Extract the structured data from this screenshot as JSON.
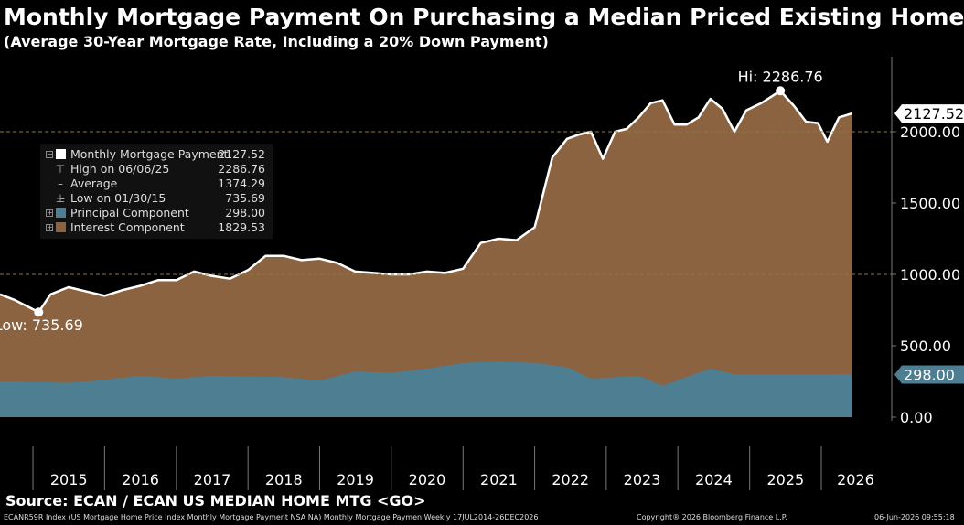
{
  "chart_data": {
    "type": "area",
    "title": "Monthly Mortgage Payment On Purchasing a Median Priced Existing Home",
    "subtitle": "(Average 30-Year Mortgage Rate, Including a 20% Down Payment)",
    "x_ticks": [
      "2015",
      "2016",
      "2017",
      "2018",
      "2019",
      "2020",
      "2021",
      "2022",
      "2023",
      "2024",
      "2025",
      "2026"
    ],
    "y_ticks": [
      "0.00",
      "500.00",
      "1000.00",
      "1500.00",
      "2000.00"
    ],
    "ylim": [
      0,
      2500
    ],
    "xlim": [
      "2014-07-17",
      "2026-12-26"
    ],
    "grid": "dashed horizontal lines at 1000 and 2000",
    "legend_position": "top-left",
    "series": [
      {
        "name": "Monthly Mortgage Payment",
        "color": "#ffffff",
        "x": [
          "2014-07-17",
          "2014-10-01",
          "2015-01-30",
          "2015-04-01",
          "2015-07-01",
          "2015-10-01",
          "2016-01-01",
          "2016-04-01",
          "2016-07-01",
          "2016-10-01",
          "2017-01-01",
          "2017-04-01",
          "2017-07-01",
          "2017-10-01",
          "2018-01-01",
          "2018-04-01",
          "2018-07-01",
          "2018-10-01",
          "2019-01-01",
          "2019-04-01",
          "2019-07-01",
          "2019-10-01",
          "2020-01-01",
          "2020-04-01",
          "2020-07-01",
          "2020-10-01",
          "2021-01-01",
          "2021-04-01",
          "2021-07-01",
          "2021-10-01",
          "2022-01-01",
          "2022-04-01",
          "2022-06-15",
          "2022-08-15",
          "2022-10-15",
          "2022-12-15",
          "2023-02-15",
          "2023-04-15",
          "2023-06-15",
          "2023-08-15",
          "2023-10-15",
          "2023-12-15",
          "2024-02-15",
          "2024-04-15",
          "2024-06-15",
          "2024-08-15",
          "2024-10-15",
          "2024-12-15",
          "2025-03-01",
          "2025-06-06",
          "2025-08-15",
          "2025-10-15",
          "2025-12-15",
          "2026-02-01",
          "2026-04-01",
          "2026-06-06"
        ],
        "values": [
          860,
          820,
          735.69,
          860,
          910,
          880,
          850,
          890,
          920,
          960,
          960,
          1020,
          990,
          970,
          1030,
          1130,
          1130,
          1100,
          1110,
          1080,
          1020,
          1010,
          1000,
          1000,
          1020,
          1010,
          1040,
          1220,
          1250,
          1240,
          1330,
          1820,
          1950,
          1980,
          2000,
          1810,
          2000,
          2020,
          2100,
          2200,
          2220,
          2050,
          2050,
          2100,
          2230,
          2160,
          2000,
          2150,
          2200,
          2286.76,
          2180,
          2070,
          2060,
          1930,
          2100,
          2127.52
        ]
      },
      {
        "name": "Principal Component",
        "color": "#4e7e92",
        "x": [
          "2014-07-17",
          "2015-01-30",
          "2015-07-01",
          "2016-01-01",
          "2016-07-01",
          "2017-01-01",
          "2017-07-01",
          "2018-01-01",
          "2018-07-01",
          "2019-01-01",
          "2019-07-01",
          "2020-01-01",
          "2020-07-01",
          "2021-01-01",
          "2021-07-01",
          "2022-01-01",
          "2022-06-15",
          "2022-10-15",
          "2023-06-15",
          "2023-10-15",
          "2024-06-15",
          "2024-10-15",
          "2025-06-06",
          "2026-01-01",
          "2026-06-06"
        ],
        "values": [
          250,
          245,
          240,
          260,
          290,
          270,
          290,
          285,
          280,
          255,
          320,
          310,
          340,
          380,
          390,
          380,
          350,
          270,
          290,
          220,
          340,
          300,
          300,
          300,
          298
        ]
      },
      {
        "name": "Interest Component",
        "color": "#8b6340",
        "x": [
          "2026-06-06"
        ],
        "values": [
          1829.53
        ]
      }
    ],
    "annotations": {
      "high_label": "Hi: 2286.76",
      "low_label": "Low: 735.69",
      "last_total": "2127.52",
      "last_principal": "298.00"
    }
  },
  "legend": {
    "items": [
      {
        "label": "Monthly Mortgage Payment",
        "value": "2127.52"
      },
      {
        "label": "High on 06/06/25",
        "value": "2286.76"
      },
      {
        "label": "Average",
        "value": "1374.29"
      },
      {
        "label": "Low on 01/30/15",
        "value": "735.69"
      },
      {
        "label": "Principal Component",
        "value": "298.00"
      },
      {
        "label": "Interest Component",
        "value": "1829.53"
      }
    ]
  },
  "source": "Source: ECAN / ECAN US MEDIAN HOME MTG <GO>",
  "footer": {
    "left": "ECANR59R Index (US Mortgage Home Price Index Monthly Mortgage Payment NSA NA) Monthly Mortgage Paymen Weekly 17JUL2014-26DEC2026",
    "center": "Copyright® 2026 Bloomberg Finance L.P.",
    "right": "06-Jun-2026 09:55:18"
  }
}
